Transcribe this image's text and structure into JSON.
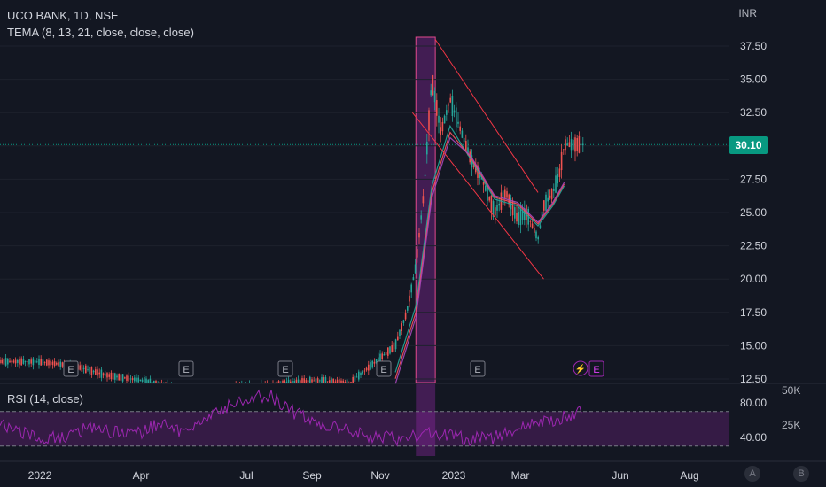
{
  "header": {
    "title": "UCO BANK, 1D, NSE",
    "indicator": "TEMA (8, 13, 21, close, close, close)",
    "currency": "INR"
  },
  "price_axis": {
    "ticks": [
      "37.50",
      "35.00",
      "32.50",
      "30.00",
      "27.50",
      "25.00",
      "22.50",
      "20.00",
      "17.50",
      "15.00",
      "12.50"
    ],
    "last_price": "30.10"
  },
  "rsi_pane": {
    "label": "RSI (14, close)",
    "ticks": [
      "80.00",
      "40.00"
    ],
    "volume_ticks": [
      "50K",
      "25K"
    ]
  },
  "time_axis": {
    "ticks": [
      "2022",
      "Apr",
      "Jul",
      "Sep",
      "Nov",
      "2023",
      "Mar",
      "Jun",
      "Aug"
    ]
  },
  "earnings_markers": [
    "E",
    "E",
    "E",
    "E",
    "E",
    "E"
  ],
  "dividend_marker": "⚡",
  "buttons": {
    "a": "A",
    "b": "B"
  },
  "colors": {
    "background": "#131722",
    "up": "#26a69a",
    "down": "#ef5350",
    "tema": "#f7525f",
    "highlight": "#9c27b0",
    "rsi": "#9c27b0",
    "last_price_tag": "#089981"
  },
  "chart_data": {
    "type": "candlestick",
    "symbol": "UCO BANK",
    "interval": "1D",
    "exchange": "NSE",
    "y_range": [
      12.5,
      38.5
    ],
    "price_series": {
      "dates": [
        "2022-01",
        "2022-02",
        "2022-03",
        "2022-04",
        "2022-05",
        "2022-06",
        "2022-07",
        "2022-08",
        "2022-09",
        "2022-10",
        "2022-11-10",
        "2022-11-20",
        "2022-11-28",
        "2022-12-05",
        "2022-12-12",
        "2022-12-20",
        "2022-12-28",
        "2023-01-05",
        "2023-01-15",
        "2023-01-25",
        "2023-02-05",
        "2023-02-15",
        "2023-02-25",
        "2023-03-05",
        "2023-03-15",
        "2023-03-20",
        "2023-03-28",
        "2023-04-03",
        "2023-04-07"
      ],
      "close": [
        13.8,
        13.5,
        12.8,
        12.4,
        11.8,
        11.6,
        11.9,
        12.1,
        12.4,
        12.2,
        15.0,
        17.5,
        21.0,
        26.5,
        35.0,
        31.0,
        33.5,
        31.5,
        29.0,
        27.5,
        25.0,
        26.5,
        24.5,
        25.0,
        23.0,
        25.5,
        26.5,
        28.0,
        30.1
      ]
    },
    "tema_line": {
      "dates": [
        "2022-11-10",
        "2022-11-28",
        "2022-12-12",
        "2022-12-28",
        "2023-01-15",
        "2023-02-05",
        "2023-02-25",
        "2023-03-15",
        "2023-03-28",
        "2023-04-07"
      ],
      "values": [
        13.0,
        18.0,
        27.0,
        31.5,
        29.0,
        26.0,
        25.5,
        24.0,
        25.5,
        27.0
      ]
    },
    "channel": {
      "upper": {
        "from": [
          "2022-12-15",
          38.0
        ],
        "to": [
          "2023-03-15",
          26.5
        ]
      },
      "lower": {
        "from": [
          "2022-11-25",
          32.5
        ],
        "to": [
          "2023-03-20",
          20.0
        ]
      }
    },
    "highlight_range": [
      "2022-11-28",
      "2022-12-15"
    ],
    "last_price": 30.1,
    "rsi": {
      "period": 14,
      "levels": [
        70,
        30
      ],
      "y_ticks": [
        80,
        40
      ],
      "values_sample": [
        55,
        45,
        38,
        40,
        52,
        47,
        42,
        55,
        48,
        60,
        75,
        85,
        90,
        70,
        60,
        50,
        45,
        40,
        38,
        45,
        42,
        38,
        40,
        50,
        58,
        62,
        70
      ]
    }
  }
}
